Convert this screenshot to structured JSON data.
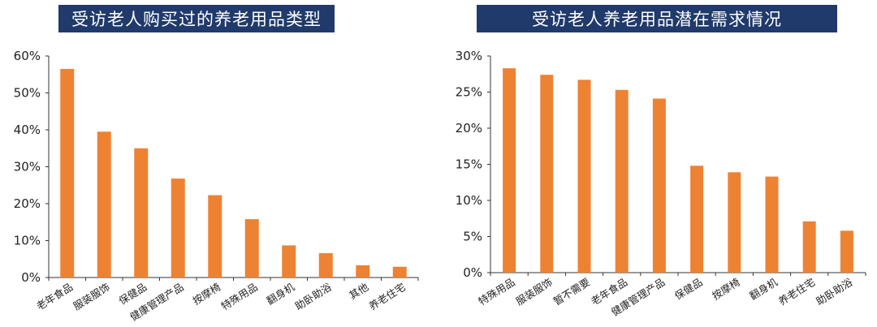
{
  "colors": {
    "bar": "#ee8233",
    "axis": "#333333",
    "title_bg": "#1f3a6b",
    "title_fg": "#ffffff"
  },
  "chart_data": [
    {
      "type": "bar",
      "title": "受访老人购买过的养老用品类型",
      "categories": [
        "老年食品",
        "服装服饰",
        "保健品",
        "健康管理产品",
        "按摩椅",
        "特殊用品",
        "翻身机",
        "助卧助浴",
        "其他",
        "养老住宅"
      ],
      "values": [
        56.5,
        39.5,
        35,
        26.8,
        22.3,
        15.8,
        8.7,
        6.6,
        3.3,
        2.9
      ],
      "ylim": [
        0,
        60
      ],
      "yticks": [
        "0%",
        "10%",
        "20%",
        "30%",
        "40%",
        "50%",
        "60%"
      ],
      "grid": false,
      "xlabel": "",
      "ylabel": ""
    },
    {
      "type": "bar",
      "title": "受访老人养老用品潜在需求情况",
      "categories": [
        "特殊用品",
        "服装服饰",
        "暂不需要",
        "老年食品",
        "健康管理产品",
        "保健品",
        "按摩椅",
        "翻身机",
        "养老住宅",
        "助卧助浴"
      ],
      "values": [
        28.3,
        27.4,
        26.7,
        25.3,
        24.1,
        14.8,
        13.9,
        13.3,
        7.1,
        5.8
      ],
      "ylim": [
        0,
        30
      ],
      "yticks": [
        "0%",
        "5%",
        "10%",
        "15%",
        "20%",
        "25%",
        "30%"
      ],
      "grid": false,
      "xlabel": "",
      "ylabel": ""
    }
  ]
}
